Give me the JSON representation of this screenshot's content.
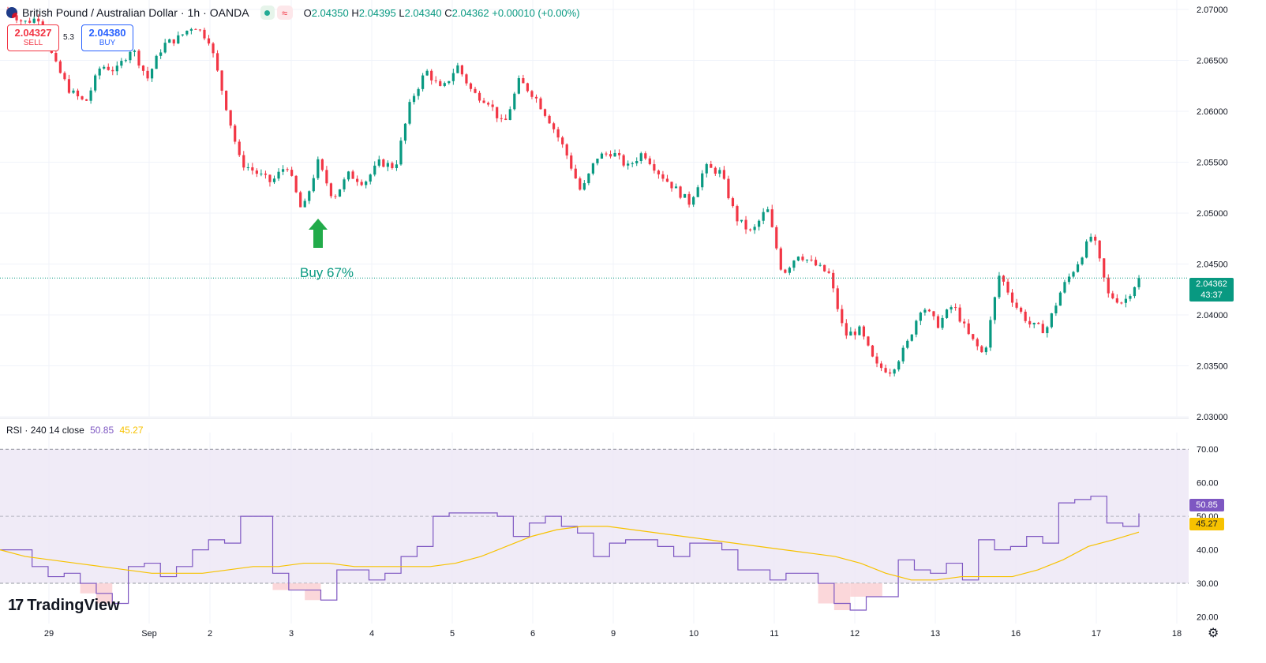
{
  "header": {
    "symbol": "British Pound / Australian Dollar",
    "interval": "1h",
    "broker": "OANDA",
    "separator": "·",
    "ohlc": {
      "o_label": "O",
      "o": "2.04350",
      "h_label": "H",
      "h": "2.04395",
      "l_label": "L",
      "l": "2.04340",
      "c_label": "C",
      "c": "2.04362",
      "change": "+0.00010 (+0.00%)"
    },
    "status_icon": "market-open-dot-icon",
    "wave_icon": "approx-wave-icon",
    "wave_glyph": "≈"
  },
  "trade": {
    "sell_price": "2.04327",
    "sell_label": "SELL",
    "buy_price": "2.04380",
    "buy_label": "BUY",
    "spread": "5.3"
  },
  "signal": {
    "label": "Buy 67%",
    "color": "#089981",
    "icon": "up-arrow-icon"
  },
  "price_tag": {
    "price": "2.04362",
    "countdown": "43:37",
    "color": "#089981"
  },
  "rsi_legend": {
    "name": "RSI",
    "params": "· 240 14 close",
    "value_rsi": "50.85",
    "value_ma": "45.27"
  },
  "rsi_tags": {
    "rsi": "50.85",
    "ma": "45.27"
  },
  "logo": {
    "text": "TradingView",
    "mark": "17"
  },
  "colors": {
    "up": "#089981",
    "down": "#f23645",
    "rsi": "#7e57c2",
    "rsi_ma": "#f7c200",
    "band": "#ede7f6"
  },
  "settings_icon": "gear-icon",
  "chart_data": [
    {
      "type": "candlestick",
      "title": "British Pound / Australian Dollar · 1h · OANDA",
      "ylim": [
        2.03,
        2.07
      ],
      "y_ticks": [
        "2.07000",
        "2.06500",
        "2.06000",
        "2.05500",
        "2.05000",
        "2.04500",
        "2.04000",
        "2.03500",
        "2.03000"
      ],
      "x_ticks": [
        "29",
        "Sep",
        "2",
        "3",
        "4",
        "5",
        "6",
        "9",
        "10",
        "11",
        "12",
        "13",
        "16",
        "17",
        "18"
      ],
      "grid": true,
      "current_price": 2.04362,
      "path": [
        [
          "29",
          2.07
        ],
        [
          "29",
          2.0687
        ],
        [
          "29",
          2.0692
        ],
        [
          "Sep",
          2.0648
        ],
        [
          "Sep",
          2.062
        ],
        [
          "Sep",
          2.0608
        ],
        [
          "Sep",
          2.0645
        ],
        [
          "Sep",
          2.064
        ],
        [
          "2",
          2.0663
        ],
        [
          "2",
          2.0632
        ],
        [
          "2",
          2.0665
        ],
        [
          "2",
          2.0672
        ],
        [
          "2",
          2.0685
        ],
        [
          "2",
          2.067
        ],
        [
          "3",
          2.061
        ],
        [
          "3",
          2.055
        ],
        [
          "3",
          2.054
        ],
        [
          "3",
          2.053
        ],
        [
          "3",
          2.0548
        ],
        [
          "3",
          2.05
        ],
        [
          "4",
          2.055
        ],
        [
          "4",
          2.0515
        ],
        [
          "4",
          2.0538
        ],
        [
          "4",
          2.053
        ],
        [
          "4",
          2.055
        ],
        [
          "4",
          2.0545
        ],
        [
          "4",
          2.061
        ],
        [
          "5",
          2.064
        ],
        [
          "5",
          2.062
        ],
        [
          "5",
          2.0645
        ],
        [
          "5",
          2.0618
        ],
        [
          "5",
          2.061
        ],
        [
          "6",
          2.0585
        ],
        [
          "6",
          2.063
        ],
        [
          "6",
          2.0615
        ],
        [
          "6",
          2.059
        ],
        [
          "6",
          2.056
        ],
        [
          "9",
          2.052
        ],
        [
          "9",
          2.0555
        ],
        [
          "9",
          2.056
        ],
        [
          "9",
          2.0545
        ],
        [
          "10",
          2.056
        ],
        [
          "10",
          2.054
        ],
        [
          "10",
          2.0525
        ],
        [
          "10",
          2.051
        ],
        [
          "10",
          2.0545
        ],
        [
          "10",
          2.054
        ],
        [
          "11",
          2.0495
        ],
        [
          "11",
          2.048
        ],
        [
          "11",
          2.0505
        ],
        [
          "11",
          2.044
        ],
        [
          "11",
          2.046
        ],
        [
          "11",
          2.045
        ],
        [
          "12",
          2.044
        ],
        [
          "12",
          2.038
        ],
        [
          "12",
          2.0385
        ],
        [
          "12",
          2.035
        ],
        [
          "12",
          2.0345
        ],
        [
          "12",
          2.037
        ],
        [
          "13",
          2.041
        ],
        [
          "13",
          2.039
        ],
        [
          "13",
          2.041
        ],
        [
          "13",
          2.038
        ],
        [
          "13",
          2.036
        ],
        [
          "16",
          2.044
        ],
        [
          "16",
          2.041
        ],
        [
          "16",
          2.039
        ],
        [
          "16",
          2.0385
        ],
        [
          "16",
          2.0425
        ],
        [
          "17",
          2.045
        ],
        [
          "17",
          2.048
        ],
        [
          "17",
          2.042
        ],
        [
          "17",
          2.0412
        ],
        [
          "17",
          2.0436
        ]
      ]
    },
    {
      "type": "line",
      "title": "RSI · 240 14 close",
      "ylim": [
        18,
        75
      ],
      "y_ticks": [
        "70.00",
        "60.00",
        "50.00",
        "40.00",
        "30.00",
        "20.00"
      ],
      "bands": {
        "upper": 70,
        "middle": 50,
        "lower": 30
      },
      "series": [
        {
          "name": "RSI",
          "values": [
            40,
            40,
            35,
            32,
            33,
            30,
            27,
            24,
            35,
            36,
            32,
            35,
            40,
            43,
            42,
            50,
            50,
            33,
            28,
            28,
            25,
            34,
            34,
            31,
            33,
            38,
            41,
            50,
            51,
            51,
            51,
            50,
            44,
            48,
            50,
            47,
            45,
            38,
            42,
            43,
            43,
            41,
            38,
            42,
            42,
            40,
            34,
            34,
            31,
            33,
            33,
            30,
            24,
            22,
            26,
            26,
            37,
            34,
            33,
            36,
            31,
            43,
            40,
            41,
            44,
            42,
            54,
            55,
            56,
            48,
            47,
            50.85
          ]
        },
        {
          "name": "MA",
          "values": [
            40,
            38,
            37,
            36,
            35,
            34,
            33,
            33,
            33,
            34,
            35,
            35,
            36,
            36,
            35,
            35,
            35,
            35,
            36,
            38,
            41,
            44,
            46,
            47,
            47,
            46,
            45,
            44,
            43,
            42,
            41,
            40,
            39,
            38,
            36,
            33,
            31,
            31,
            32,
            32,
            32,
            34,
            37,
            41,
            43,
            45.27
          ]
        }
      ]
    }
  ]
}
